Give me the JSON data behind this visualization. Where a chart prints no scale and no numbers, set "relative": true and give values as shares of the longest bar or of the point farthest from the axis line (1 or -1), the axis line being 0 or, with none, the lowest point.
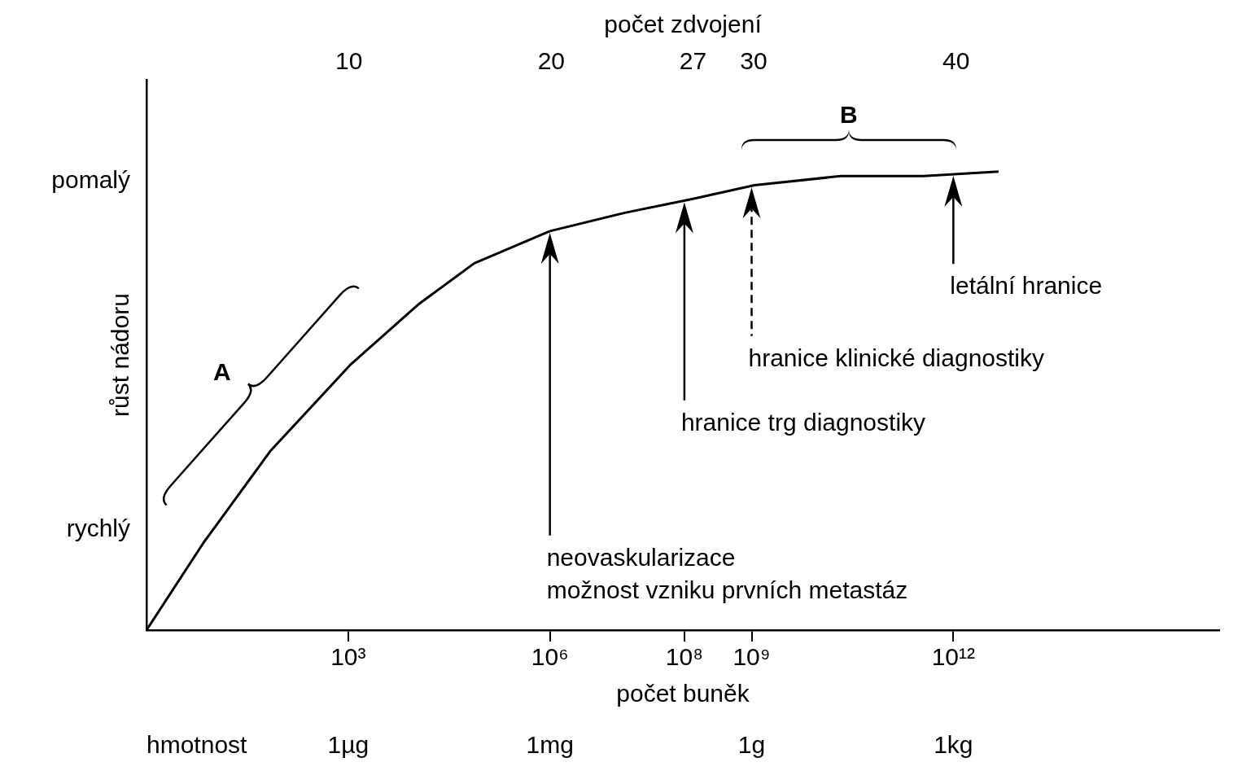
{
  "chart_data": {
    "type": "line",
    "relative": true,
    "ylabel": "růst nádoru",
    "xlabel": "počet buněk",
    "x2label": "počet zdvojení",
    "log": "x",
    "xlim": [
      1,
      9000000000000000.0
    ],
    "x2lim": [
      0,
      53
    ],
    "xticks": [
      {
        "value": 1000,
        "label": "10³"
      },
      {
        "value": 1000000,
        "label": "10⁶"
      },
      {
        "value": 100000000,
        "label": "10⁸"
      },
      {
        "value": 1000000000,
        "label": "10⁹"
      },
      {
        "value": 1000000000000,
        "label": "10¹²"
      }
    ],
    "x2ticks": [
      10,
      20,
      27,
      30,
      40
    ],
    "x": [
      1,
      7,
      69,
      1100,
      11000,
      75000,
      1000000,
      13000000,
      130000000,
      1100000000,
      21000000000,
      360000000000,
      4700000000000
    ],
    "series": [
      {
        "color": "#000000",
        "values": [
          0,
          0.19,
          0.39,
          0.58,
          0.71,
          0.8,
          0.87,
          0.91,
          0.94,
          0.97,
          0.99,
          0.99,
          1
        ]
      }
    ],
    "marker": "none",
    "line_style": "solid",
    "legend": false,
    "ref_lines": [
      {
        "axis": "x",
        "value": 1000000,
        "label": "neovaskularizace\nmožnost vzniku prvních metastáz"
      },
      {
        "axis": "x",
        "value": 100000000,
        "label": "hranice trg diagnostiky"
      },
      {
        "axis": "x",
        "value": 1000000000,
        "label": "hranice klinické diagnostiky",
        "line_style": "dashed"
      },
      {
        "axis": "x",
        "value": 1000000000000,
        "label": "letální hranice"
      }
    ],
    "annotations": [
      "pomalý",
      "rychlý",
      "A",
      "B",
      "hmotnost",
      "1µg",
      "1mg",
      "1g",
      "1kg"
    ]
  }
}
